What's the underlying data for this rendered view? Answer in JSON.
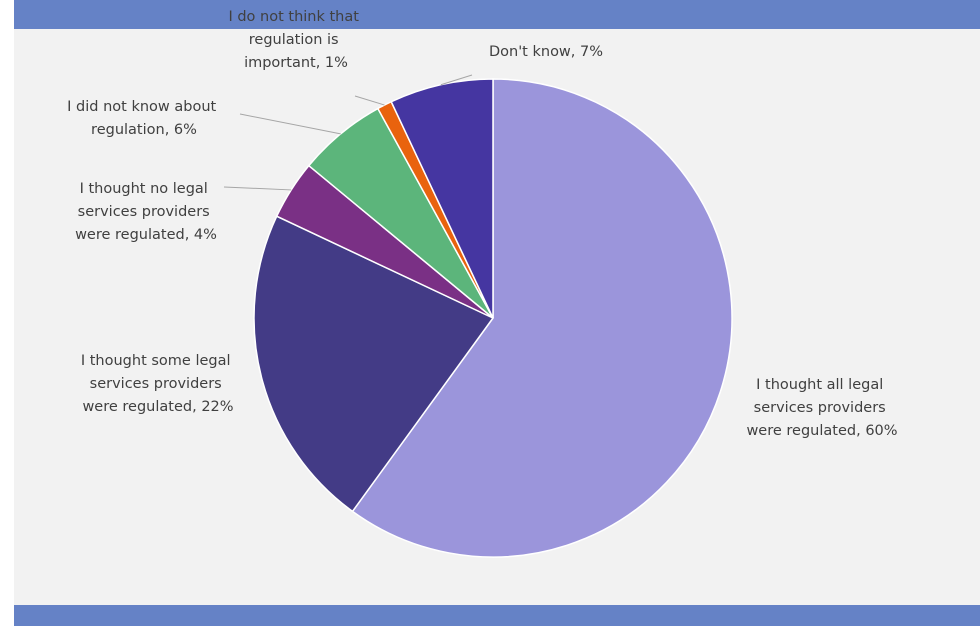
{
  "chart_data": {
    "type": "pie",
    "title": "",
    "slices": [
      {
        "label": "I thought all legal services providers were regulated",
        "value": 60,
        "value_label": "60%",
        "color": "#9b95db"
      },
      {
        "label": "I thought some legal services providers were regulated",
        "value": 22,
        "value_label": "22%",
        "color": "#433b86"
      },
      {
        "label": "I thought no legal services providers were regulated",
        "value": 4,
        "value_label": "4%",
        "color": "#7a3085"
      },
      {
        "label": "I did not know about regulation",
        "value": 6,
        "value_label": "6%",
        "color": "#5cb57b"
      },
      {
        "label": "I do not think that regulation is important",
        "value": 1,
        "value_label": "1%",
        "color": "#e9630e"
      },
      {
        "label": "Don't know",
        "value": 7,
        "value_label": "7%",
        "color": "#4536a1"
      }
    ],
    "start_angle_deg": 0,
    "direction": "clockwise",
    "legend": "none",
    "data_labels": "outside with leader lines"
  }
}
